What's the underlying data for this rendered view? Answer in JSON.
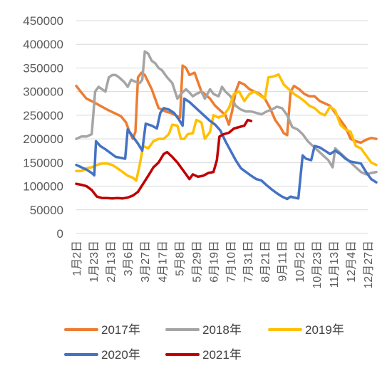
{
  "chart_data": {
    "type": "line",
    "title": "",
    "xlabel": "",
    "ylabel": "",
    "ylim": [
      0,
      450000
    ],
    "yticks": [
      "450000",
      "400000",
      "350000",
      "300000",
      "250000",
      "200000",
      "150000",
      "100000",
      "50000",
      "0"
    ],
    "x_tick_labels": [
      "1月2日",
      "1月23日",
      "2月13日",
      "3月6日",
      "3月27日",
      "4月17日",
      "5月8日",
      "5月29日",
      "6月19日",
      "7月10日",
      "7月31日",
      "8月21日",
      "9月11日",
      "10月2日",
      "10月23日",
      "11月13日",
      "12月4日",
      "12月27日"
    ],
    "grid": "horizontal",
    "legend_position": "bottom",
    "series": [
      {
        "name": "2017年",
        "color": "#ED7D31",
        "points": [
          [
            0,
            312000
          ],
          [
            0.3,
            298000
          ],
          [
            0.6,
            285000
          ],
          [
            1,
            278000
          ],
          [
            1.4,
            270000
          ],
          [
            1.8,
            262000
          ],
          [
            2.2,
            255000
          ],
          [
            2.6,
            248000
          ],
          [
            2.9,
            235000
          ],
          [
            3.1,
            215000
          ],
          [
            3.3,
            200000
          ],
          [
            3.45,
            215000
          ],
          [
            3.6,
            330000
          ],
          [
            3.8,
            340000
          ],
          [
            4.0,
            335000
          ],
          [
            4.2,
            320000
          ],
          [
            4.4,
            305000
          ],
          [
            4.6,
            285000
          ],
          [
            4.8,
            265000
          ],
          [
            5.0,
            262000
          ],
          [
            5.2,
            258000
          ],
          [
            5.5,
            255000
          ],
          [
            5.8,
            250000
          ],
          [
            6.05,
            245000
          ],
          [
            6.2,
            355000
          ],
          [
            6.4,
            350000
          ],
          [
            6.6,
            335000
          ],
          [
            6.9,
            340000
          ],
          [
            7.1,
            320000
          ],
          [
            7.3,
            300000
          ],
          [
            7.5,
            295000
          ],
          [
            7.8,
            285000
          ],
          [
            8.1,
            270000
          ],
          [
            8.4,
            260000
          ],
          [
            8.7,
            250000
          ],
          [
            8.9,
            230000
          ],
          [
            9.1,
            260000
          ],
          [
            9.3,
            300000
          ],
          [
            9.5,
            320000
          ],
          [
            9.8,
            315000
          ],
          [
            10.1,
            305000
          ],
          [
            10.4,
            300000
          ],
          [
            10.7,
            295000
          ],
          [
            11.0,
            285000
          ],
          [
            11.3,
            265000
          ],
          [
            11.6,
            240000
          ],
          [
            11.9,
            225000
          ],
          [
            12.1,
            212000
          ],
          [
            12.3,
            208000
          ],
          [
            12.5,
            300000
          ],
          [
            12.7,
            312000
          ],
          [
            13.0,
            305000
          ],
          [
            13.3,
            295000
          ],
          [
            13.6,
            290000
          ],
          [
            13.9,
            290000
          ],
          [
            14.2,
            280000
          ],
          [
            14.5,
            275000
          ],
          [
            14.8,
            270000
          ],
          [
            15.1,
            255000
          ],
          [
            15.4,
            240000
          ],
          [
            15.7,
            225000
          ],
          [
            16.0,
            200000
          ],
          [
            16.3,
            195000
          ],
          [
            16.6,
            192000
          ],
          [
            16.9,
            198000
          ],
          [
            17.2,
            202000
          ],
          [
            17.5,
            200000
          ]
        ]
      },
      {
        "name": "2018年",
        "color": "#A5A5A5",
        "points": [
          [
            0,
            200000
          ],
          [
            0.3,
            205000
          ],
          [
            0.6,
            205000
          ],
          [
            0.9,
            210000
          ],
          [
            1.1,
            300000
          ],
          [
            1.3,
            310000
          ],
          [
            1.5,
            305000
          ],
          [
            1.7,
            300000
          ],
          [
            1.9,
            330000
          ],
          [
            2.1,
            335000
          ],
          [
            2.3,
            335000
          ],
          [
            2.5,
            330000
          ],
          [
            2.8,
            320000
          ],
          [
            3.0,
            310000
          ],
          [
            3.2,
            325000
          ],
          [
            3.5,
            320000
          ],
          [
            3.7,
            318000
          ],
          [
            3.85,
            325000
          ],
          [
            4.0,
            385000
          ],
          [
            4.2,
            380000
          ],
          [
            4.4,
            365000
          ],
          [
            4.6,
            360000
          ],
          [
            4.8,
            350000
          ],
          [
            5.0,
            345000
          ],
          [
            5.3,
            330000
          ],
          [
            5.6,
            318000
          ],
          [
            5.9,
            285000
          ],
          [
            6.1,
            295000
          ],
          [
            6.4,
            305000
          ],
          [
            6.6,
            298000
          ],
          [
            6.8,
            290000
          ],
          [
            7.0,
            295000
          ],
          [
            7.3,
            300000
          ],
          [
            7.5,
            285000
          ],
          [
            7.8,
            305000
          ],
          [
            8.0,
            295000
          ],
          [
            8.3,
            290000
          ],
          [
            8.5,
            310000
          ],
          [
            8.7,
            300000
          ],
          [
            9.0,
            290000
          ],
          [
            9.3,
            270000
          ],
          [
            9.6,
            262000
          ],
          [
            9.9,
            258000
          ],
          [
            10.2,
            258000
          ],
          [
            10.5,
            255000
          ],
          [
            10.8,
            252000
          ],
          [
            11.1,
            258000
          ],
          [
            11.4,
            262000
          ],
          [
            11.7,
            268000
          ],
          [
            12.0,
            265000
          ],
          [
            12.3,
            250000
          ],
          [
            12.6,
            225000
          ],
          [
            12.9,
            220000
          ],
          [
            13.2,
            210000
          ],
          [
            13.5,
            195000
          ],
          [
            13.8,
            185000
          ],
          [
            14.1,
            175000
          ],
          [
            14.4,
            165000
          ],
          [
            14.7,
            155000
          ],
          [
            14.95,
            140000
          ],
          [
            15.1,
            180000
          ],
          [
            15.4,
            170000
          ],
          [
            15.7,
            160000
          ],
          [
            16.0,
            150000
          ],
          [
            16.3,
            140000
          ],
          [
            16.6,
            130000
          ],
          [
            16.9,
            125000
          ],
          [
            17.2,
            128000
          ],
          [
            17.5,
            130000
          ]
        ]
      },
      {
        "name": "2019年",
        "color": "#FFC000",
        "points": [
          [
            0,
            132000
          ],
          [
            0.3,
            132000
          ],
          [
            0.6,
            138000
          ],
          [
            0.9,
            140000
          ],
          [
            1.2,
            145000
          ],
          [
            1.5,
            148000
          ],
          [
            1.8,
            148000
          ],
          [
            2.1,
            145000
          ],
          [
            2.4,
            138000
          ],
          [
            2.7,
            130000
          ],
          [
            3.0,
            122000
          ],
          [
            3.3,
            118000
          ],
          [
            3.5,
            112000
          ],
          [
            3.7,
            145000
          ],
          [
            3.9,
            185000
          ],
          [
            4.2,
            180000
          ],
          [
            4.5,
            195000
          ],
          [
            4.8,
            200000
          ],
          [
            5.1,
            200000
          ],
          [
            5.4,
            210000
          ],
          [
            5.6,
            230000
          ],
          [
            5.9,
            228000
          ],
          [
            6.1,
            200000
          ],
          [
            6.3,
            200000
          ],
          [
            6.5,
            210000
          ],
          [
            6.8,
            212000
          ],
          [
            7.0,
            240000
          ],
          [
            7.3,
            235000
          ],
          [
            7.5,
            200000
          ],
          [
            7.8,
            215000
          ],
          [
            8.0,
            250000
          ],
          [
            8.3,
            245000
          ],
          [
            8.6,
            250000
          ],
          [
            8.9,
            265000
          ],
          [
            9.2,
            295000
          ],
          [
            9.5,
            300000
          ],
          [
            9.8,
            280000
          ],
          [
            10.1,
            295000
          ],
          [
            10.4,
            300000
          ],
          [
            10.7,
            292000
          ],
          [
            11.0,
            285000
          ],
          [
            11.2,
            330000
          ],
          [
            11.5,
            332000
          ],
          [
            11.8,
            336000
          ],
          [
            12.1,
            315000
          ],
          [
            12.4,
            305000
          ],
          [
            12.7,
            295000
          ],
          [
            13.0,
            288000
          ],
          [
            13.3,
            280000
          ],
          [
            13.6,
            270000
          ],
          [
            13.9,
            265000
          ],
          [
            14.2,
            255000
          ],
          [
            14.5,
            250000
          ],
          [
            14.8,
            268000
          ],
          [
            15.1,
            260000
          ],
          [
            15.4,
            230000
          ],
          [
            15.7,
            220000
          ],
          [
            16.0,
            215000
          ],
          [
            16.3,
            185000
          ],
          [
            16.6,
            180000
          ],
          [
            16.9,
            165000
          ],
          [
            17.2,
            150000
          ],
          [
            17.5,
            145000
          ]
        ]
      },
      {
        "name": "2020年",
        "color": "#4472C4",
        "points": [
          [
            0,
            145000
          ],
          [
            0.3,
            140000
          ],
          [
            0.6,
            135000
          ],
          [
            0.9,
            128000
          ],
          [
            1.05,
            123000
          ],
          [
            1.15,
            195000
          ],
          [
            1.4,
            185000
          ],
          [
            1.7,
            178000
          ],
          [
            2.0,
            170000
          ],
          [
            2.3,
            162000
          ],
          [
            2.6,
            160000
          ],
          [
            2.85,
            158000
          ],
          [
            3.0,
            220000
          ],
          [
            3.3,
            205000
          ],
          [
            3.6,
            190000
          ],
          [
            3.85,
            175000
          ],
          [
            4.05,
            232000
          ],
          [
            4.4,
            228000
          ],
          [
            4.7,
            222000
          ],
          [
            4.9,
            255000
          ],
          [
            5.1,
            265000
          ],
          [
            5.4,
            262000
          ],
          [
            5.7,
            255000
          ],
          [
            6.0,
            240000
          ],
          [
            6.2,
            228000
          ],
          [
            6.3,
            285000
          ],
          [
            6.6,
            278000
          ],
          [
            6.9,
            268000
          ],
          [
            7.2,
            258000
          ],
          [
            7.5,
            248000
          ],
          [
            7.8,
            238000
          ],
          [
            8.1,
            230000
          ],
          [
            8.4,
            218000
          ],
          [
            8.7,
            195000
          ],
          [
            9.0,
            175000
          ],
          [
            9.3,
            155000
          ],
          [
            9.6,
            138000
          ],
          [
            9.9,
            130000
          ],
          [
            10.2,
            122000
          ],
          [
            10.5,
            115000
          ],
          [
            10.8,
            112000
          ],
          [
            11.1,
            102000
          ],
          [
            11.4,
            93000
          ],
          [
            11.7,
            85000
          ],
          [
            12.0,
            78000
          ],
          [
            12.3,
            73000
          ],
          [
            12.5,
            78000
          ],
          [
            12.7,
            76000
          ],
          [
            12.95,
            74000
          ],
          [
            13.2,
            165000
          ],
          [
            13.4,
            158000
          ],
          [
            13.7,
            155000
          ],
          [
            13.9,
            185000
          ],
          [
            14.2,
            182000
          ],
          [
            14.5,
            175000
          ],
          [
            14.8,
            168000
          ],
          [
            15.1,
            175000
          ],
          [
            15.4,
            168000
          ],
          [
            15.7,
            158000
          ],
          [
            16.0,
            152000
          ],
          [
            16.3,
            150000
          ],
          [
            16.6,
            148000
          ],
          [
            16.9,
            130000
          ],
          [
            17.2,
            115000
          ],
          [
            17.5,
            108000
          ]
        ]
      },
      {
        "name": "2021年",
        "color": "#C00000",
        "points": [
          [
            0,
            105000
          ],
          [
            0.3,
            103000
          ],
          [
            0.6,
            100000
          ],
          [
            0.9,
            92000
          ],
          [
            1.2,
            78000
          ],
          [
            1.5,
            75000
          ],
          [
            1.8,
            75000
          ],
          [
            2.1,
            74000
          ],
          [
            2.4,
            75000
          ],
          [
            2.7,
            74000
          ],
          [
            3.0,
            76000
          ],
          [
            3.3,
            80000
          ],
          [
            3.6,
            88000
          ],
          [
            3.9,
            105000
          ],
          [
            4.2,
            122000
          ],
          [
            4.5,
            140000
          ],
          [
            4.8,
            150000
          ],
          [
            5.1,
            168000
          ],
          [
            5.3,
            172000
          ],
          [
            5.6,
            162000
          ],
          [
            5.9,
            150000
          ],
          [
            6.2,
            135000
          ],
          [
            6.4,
            125000
          ],
          [
            6.6,
            115000
          ],
          [
            6.8,
            125000
          ],
          [
            7.1,
            120000
          ],
          [
            7.4,
            122000
          ],
          [
            7.7,
            128000
          ],
          [
            8.0,
            130000
          ],
          [
            8.2,
            155000
          ],
          [
            8.35,
            205000
          ],
          [
            8.6,
            210000
          ],
          [
            8.9,
            213000
          ],
          [
            9.2,
            222000
          ],
          [
            9.5,
            225000
          ],
          [
            9.8,
            228000
          ],
          [
            10.0,
            240000
          ],
          [
            10.2,
            238000
          ]
        ]
      }
    ]
  }
}
